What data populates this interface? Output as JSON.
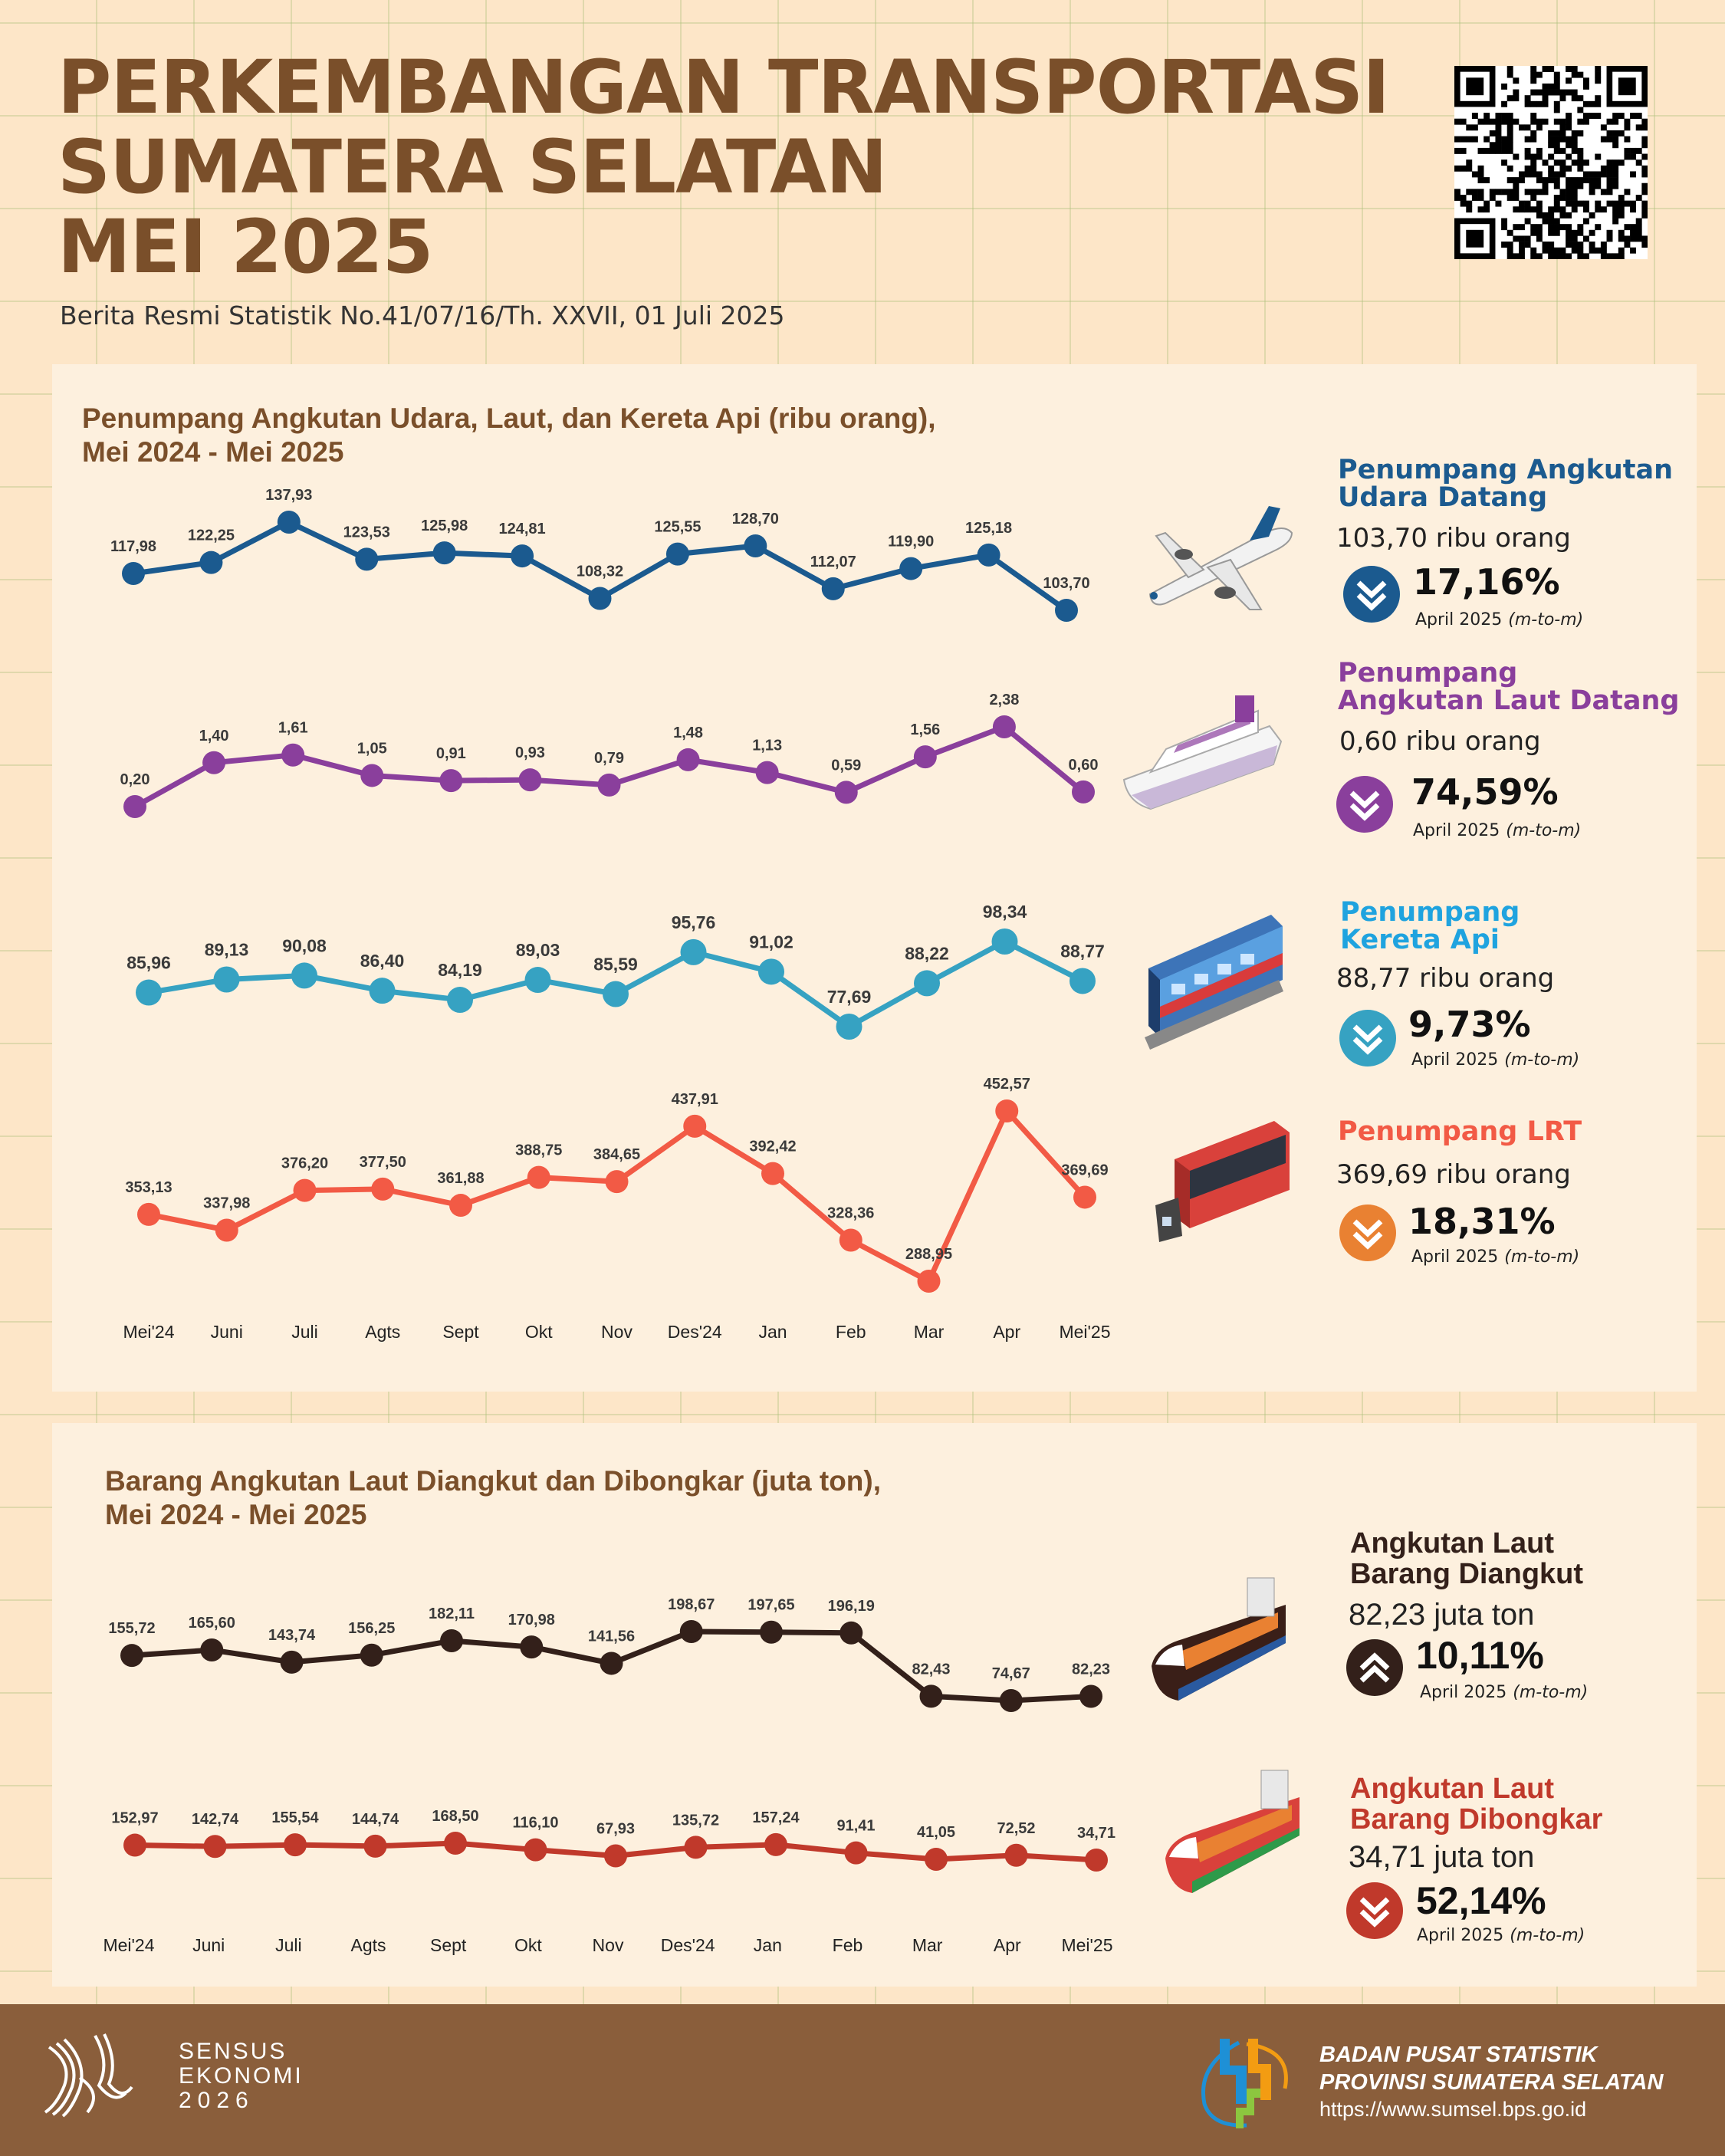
{
  "header": {
    "title_lines": [
      "PERKEMBANGAN TRANSPORTASI",
      "SUMATERA SELATAN",
      "MEI 2025"
    ],
    "subtitle": "Berita Resmi Statistik No.41/07/16/Th. XXVII, 01 Juli 2025"
  },
  "colors": {
    "brown": "#7a4f2a",
    "air": "#1b5a8f",
    "sea": "#8a3f9c",
    "train": "#36a2c2",
    "lrt": "#f25a45",
    "lrt_badge": "#e98132",
    "loaded": "#33201a",
    "unloaded": "#c0392b",
    "footer": "#8a5e3b"
  },
  "passenger_section": {
    "title_line1": "Penumpang Angkutan Udara, Laut, dan Kereta Api (ribu orang),",
    "title_line2": "Mei 2024 - Mei 2025",
    "cards": [
      {
        "title1": "Penumpang Angkutan",
        "title2": "Udara Datang",
        "value": "103,70 ribu orang",
        "change": "17,16%",
        "direction": "down",
        "period": "April 2025",
        "basis": "(m-to-m)",
        "icon": "airplane-icon"
      },
      {
        "title1": "Penumpang",
        "title2": "Angkutan Laut Datang",
        "value": "0,60 ribu orang",
        "change": "74,59%",
        "direction": "down",
        "period": "April 2025",
        "basis": "(m-to-m)",
        "icon": "cruise-ship-icon"
      },
      {
        "title1": "Penumpang",
        "title2": "Kereta Api",
        "value": "88,77 ribu orang",
        "change": "9,73%",
        "direction": "down",
        "period": "April 2025",
        "basis": "(m-to-m)",
        "icon": "train-icon"
      },
      {
        "title1": "Penumpang LRT",
        "title2": "",
        "value": "369,69 ribu orang",
        "change": "18,31%",
        "direction": "down",
        "period": "April 2025",
        "basis": "(m-to-m)",
        "icon": "lrt-icon"
      }
    ]
  },
  "goods_section": {
    "title_line1": "Barang Angkutan Laut Diangkut dan Dibongkar (juta ton)",
    "title_line2": "Mei 2024 - Mei 2025",
    "cards": [
      {
        "title1": "Angkutan Laut",
        "title2": "Barang Diangkut",
        "value": "82,23 juta ton",
        "change": "10,11%",
        "direction": "up",
        "period": "April 2025",
        "basis": "(m-to-m)",
        "icon": "cargo-ship-icon"
      },
      {
        "title1": "Angkutan Laut",
        "title2": "Barang Dibongkar",
        "value": "34,71 juta ton",
        "change": "52,14%",
        "direction": "down",
        "period": "April 2025",
        "basis": "(m-to-m)",
        "icon": "cargo-ship-icon"
      }
    ]
  },
  "chart_data": [
    {
      "type": "line",
      "title": "Penumpang Angkutan Udara, Laut, dan Kereta Api (ribu orang), Mei 2024 - Mei 2025",
      "xlabel": "",
      "ylabel": "ribu orang",
      "categories": [
        "Mei'24",
        "Juni",
        "Juli",
        "Agts",
        "Sept",
        "Okt",
        "Nov",
        "Des'24",
        "Jan",
        "Feb",
        "Mar",
        "Apr",
        "Mei'25"
      ],
      "series": [
        {
          "name": "Penumpang Angkutan Udara Datang",
          "values": [
            117.98,
            122.25,
            137.93,
            123.53,
            125.98,
            124.81,
            108.32,
            125.55,
            128.7,
            112.07,
            119.9,
            125.18,
            103.7
          ],
          "labels": [
            "117,98",
            "122,25",
            "137,93",
            "123,53",
            "125,98",
            "124,81",
            "108,32",
            "125,55",
            "128,70",
            "112,07",
            "119,90",
            "125,18",
            "103,70"
          ]
        },
        {
          "name": "Penumpang Angkutan Laut Datang",
          "values": [
            0.2,
            1.4,
            1.61,
            1.05,
            0.91,
            0.93,
            0.79,
            1.48,
            1.13,
            0.59,
            1.56,
            2.38,
            0.6
          ],
          "labels": [
            "0,20",
            "1,40",
            "1,61",
            "1,05",
            "0,91",
            "0,93",
            "0,79",
            "1,48",
            "1,13",
            "0,59",
            "1,56",
            "2,38",
            "0,60"
          ]
        },
        {
          "name": "Penumpang Kereta Api",
          "values": [
            85.96,
            89.13,
            90.08,
            86.4,
            84.19,
            89.03,
            85.59,
            95.76,
            91.02,
            77.69,
            88.22,
            98.34,
            88.77
          ],
          "labels": [
            "85,96",
            "89,13",
            "90,08",
            "86,40",
            "84,19",
            "89,03",
            "85,59",
            "95,76",
            "91,02",
            "77,69",
            "88,22",
            "98,34",
            "88,77"
          ]
        },
        {
          "name": "Penumpang LRT",
          "values": [
            353.13,
            337.98,
            376.2,
            377.5,
            361.88,
            388.75,
            384.65,
            437.91,
            392.42,
            328.36,
            288.95,
            452.57,
            369.69
          ],
          "labels": [
            "353,13",
            "337,98",
            "376,20",
            "377,50",
            "361,88",
            "388,75",
            "384,65",
            "437,91",
            "392,42",
            "328,36",
            "288,95",
            "452,57",
            "369,69"
          ]
        }
      ]
    },
    {
      "type": "line",
      "title": "Barang Angkutan Laut Diangkut dan Dibongkar (juta ton), Mei 2024 - Mei 2025",
      "xlabel": "",
      "ylabel": "juta ton",
      "categories": [
        "Mei'24",
        "Juni",
        "Juli",
        "Agts",
        "Sept",
        "Okt",
        "Nov",
        "Des'24",
        "Jan",
        "Feb",
        "Mar",
        "Apr",
        "Mei'25"
      ],
      "series": [
        {
          "name": "Angkutan Laut Barang Diangkut",
          "values": [
            155.72,
            165.6,
            143.74,
            156.25,
            182.11,
            170.98,
            141.56,
            198.67,
            197.65,
            196.19,
            82.43,
            74.67,
            82.23
          ],
          "labels": [
            "155,72",
            "165,60",
            "143,74",
            "156,25",
            "182,11",
            "170,98",
            "141,56",
            "198,67",
            "197,65",
            "196,19",
            "82,43",
            "74,67",
            "82,23"
          ]
        },
        {
          "name": "Angkutan Laut Barang Dibongkar",
          "values": [
            152.97,
            142.74,
            155.54,
            144.74,
            168.5,
            116.1,
            67.93,
            135.72,
            157.24,
            91.41,
            41.05,
            72.52,
            34.71
          ],
          "labels": [
            "152,97",
            "142,74",
            "155,54",
            "144,74",
            "168,50",
            "116,10",
            "67,93",
            "135,72",
            "157,24",
            "91,41",
            "41,05",
            "72,52",
            "34,71"
          ]
        }
      ]
    }
  ],
  "footer": {
    "census_lines": [
      "SENSUS",
      "EKONOMI",
      "2026"
    ],
    "org_line1": "BADAN PUSAT STATISTIK",
    "org_line2": "PROVINSI SUMATERA SELATAN",
    "url": "https://www.sumsel.bps.go.id"
  }
}
